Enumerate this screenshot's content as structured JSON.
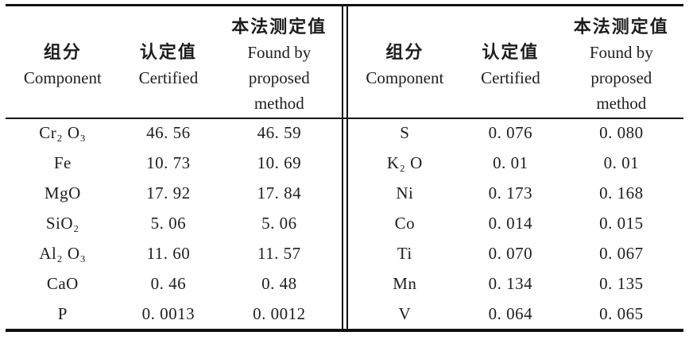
{
  "table": {
    "title_semantic": "Certified values vs values found by proposed method",
    "header": {
      "component_zh": "组分",
      "component_en": "Component",
      "certified_zh": "认定值",
      "certified_en": "Certified",
      "found_zh": "本法测定值",
      "found_en_line1": "Found by",
      "found_en_line2": "proposed",
      "found_en_line3": "method"
    },
    "left_rows": [
      {
        "component": "Cr₂ O₃",
        "certified": "46. 56",
        "found": "46. 59"
      },
      {
        "component": "Fe",
        "certified": "10. 73",
        "found": "10. 69"
      },
      {
        "component": "MgO",
        "certified": "17. 92",
        "found": "17. 84"
      },
      {
        "component": "SiO₂",
        "certified": "5. 06",
        "found": "5. 06"
      },
      {
        "component": "Al₂ O₃",
        "certified": "11. 60",
        "found": "11. 57"
      },
      {
        "component": "CaO",
        "certified": "0. 46",
        "found": "0. 48"
      },
      {
        "component": "P",
        "certified": "0. 0013",
        "found": "0. 0012"
      }
    ],
    "right_rows": [
      {
        "component": "S",
        "certified": "0. 076",
        "found": "0. 080"
      },
      {
        "component": "K₂ O",
        "certified": "0. 01",
        "found": "0. 01"
      },
      {
        "component": "Ni",
        "certified": "0. 173",
        "found": "0. 168"
      },
      {
        "component": "Co",
        "certified": "0. 014",
        "found": "0. 015"
      },
      {
        "component": "Ti",
        "certified": "0. 070",
        "found": "0. 067"
      },
      {
        "component": "Mn",
        "certified": "0. 134",
        "found": "0. 135"
      },
      {
        "component": "V",
        "certified": "0. 064",
        "found": "0. 065"
      }
    ]
  },
  "colors": {
    "text": "#1e1e1e",
    "rule": "#101010",
    "background": "#ffffff"
  }
}
